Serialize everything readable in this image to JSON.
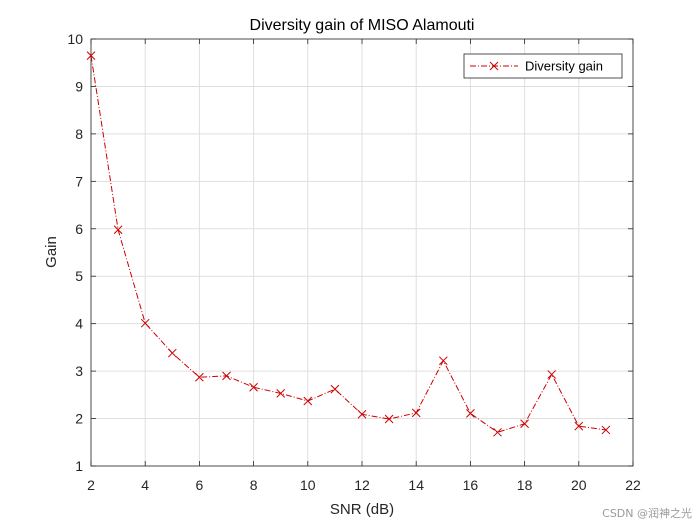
{
  "chart_data": {
    "type": "line",
    "title": "Diversity gain of MISO Alamouti",
    "xlabel": "SNR (dB)",
    "ylabel": "Gain",
    "xlim": [
      2,
      22
    ],
    "ylim": [
      1,
      10
    ],
    "xticks": [
      2,
      4,
      6,
      8,
      10,
      12,
      14,
      16,
      18,
      20,
      22
    ],
    "yticks": [
      1,
      2,
      3,
      4,
      5,
      6,
      7,
      8,
      9,
      10
    ],
    "grid": true,
    "legend_position": "top-right",
    "series": [
      {
        "name": "Diversity gain",
        "color": "#cc0000",
        "line_style": "dash-dot",
        "marker": "x",
        "x": [
          2,
          3,
          4,
          5,
          6,
          7,
          8,
          9,
          10,
          11,
          12,
          13,
          14,
          15,
          16,
          17,
          18,
          19,
          20,
          21
        ],
        "values": [
          9.65,
          5.98,
          4.01,
          3.38,
          2.87,
          2.9,
          2.66,
          2.53,
          2.37,
          2.62,
          2.09,
          1.99,
          2.12,
          3.22,
          2.11,
          1.71,
          1.89,
          2.93,
          1.84,
          1.76
        ]
      }
    ]
  },
  "watermark": "CSDN @润神之光"
}
